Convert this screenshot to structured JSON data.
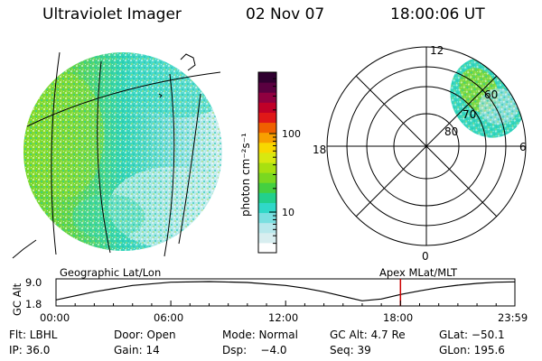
{
  "header": {
    "instrument": "Ultraviolet Imager",
    "date": "02 Nov 07",
    "time": "18:00:06 UT"
  },
  "colorbar": {
    "label": "photon cm⁻²s⁻¹",
    "scale": "log",
    "tick_labels": [
      "10",
      "100"
    ],
    "colors": [
      "#ffffff",
      "#d8eef0",
      "#b8e8ec",
      "#7adfe0",
      "#30d8c8",
      "#22d08c",
      "#44d040",
      "#7ad820",
      "#a8e010",
      "#d8e810",
      "#f8d800",
      "#f8a000",
      "#f06000",
      "#e01818",
      "#c00028",
      "#900040",
      "#5a0040",
      "#300030"
    ]
  },
  "polar_plot": {
    "clock_labels": [
      "12",
      "18",
      "6",
      "0"
    ],
    "latitude_labels": [
      "80",
      "70",
      "60"
    ]
  },
  "map_labels": {
    "left": "Geographic Lat/Lon",
    "right": "Apex MLat/MLT"
  },
  "altitude_plot": {
    "ylabel": "GC Alt",
    "ytick_labels": [
      "9.0",
      "1.8"
    ],
    "xtick_labels": [
      "00:00",
      "06:00",
      "12:00",
      "18:00",
      "23:59"
    ],
    "current_time_hours": 18.0,
    "marker_color": "#cc0000",
    "altitude_curve": {
      "t_hours": [
        0,
        2,
        4,
        6,
        8,
        10,
        12,
        13,
        14,
        15,
        16,
        17,
        18,
        19,
        20,
        21,
        22,
        23,
        23.98
      ],
      "alt_re": [
        2.9,
        5.6,
        7.7,
        8.8,
        9.0,
        8.7,
        7.7,
        6.8,
        5.6,
        4.1,
        2.6,
        3.2,
        4.7,
        5.9,
        7.0,
        7.8,
        8.4,
        8.8,
        8.9
      ]
    }
  },
  "status": {
    "row1": {
      "flt": "Flt: LBHL",
      "door": "Door: Open",
      "mode": "Mode: Normal",
      "gc_alt": "GC Alt: 4.7 Re",
      "glat": "GLat: −50.1"
    },
    "row2": {
      "ip": "IP: 36.0",
      "gain": "Gain: 14",
      "dsp": "Dsp:    −4.0",
      "seq": "Seq: 39",
      "glon": "GLon: 195.6"
    }
  }
}
